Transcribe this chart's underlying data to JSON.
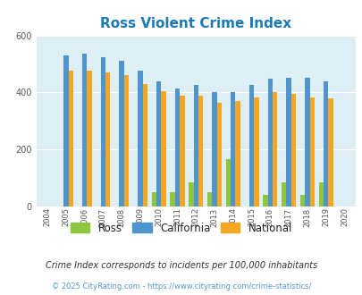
{
  "title": "Ross Violent Crime Index",
  "years": [
    "2004",
    "2005",
    "2006",
    "2007",
    "2008",
    "2009",
    "2010",
    "2011",
    "2012",
    "2013",
    "2014",
    "2015",
    "2016",
    "2017",
    "2018",
    "2019",
    "2020"
  ],
  "ross": [
    0,
    0,
    0,
    0,
    0,
    0,
    50,
    50,
    85,
    50,
    165,
    0,
    42,
    85,
    42,
    85,
    0
  ],
  "california": [
    0,
    530,
    535,
    525,
    510,
    475,
    440,
    415,
    425,
    400,
    400,
    425,
    447,
    450,
    450,
    440,
    0
  ],
  "national": [
    0,
    475,
    475,
    470,
    460,
    430,
    405,
    390,
    390,
    365,
    370,
    383,
    400,
    395,
    383,
    378,
    0
  ],
  "ross_color": "#8dc63f",
  "california_color": "#4f94cd",
  "national_color": "#f5a623",
  "bg_color": "#deeef5",
  "ylim": [
    0,
    600
  ],
  "yticks": [
    0,
    200,
    400,
    600
  ],
  "title_fontsize": 11,
  "footnote1": "Crime Index corresponds to incidents per 100,000 inhabitants",
  "footnote2": "© 2025 CityRating.com - https://www.cityrating.com/crime-statistics/",
  "legend_labels": [
    "Ross",
    "California",
    "National"
  ]
}
